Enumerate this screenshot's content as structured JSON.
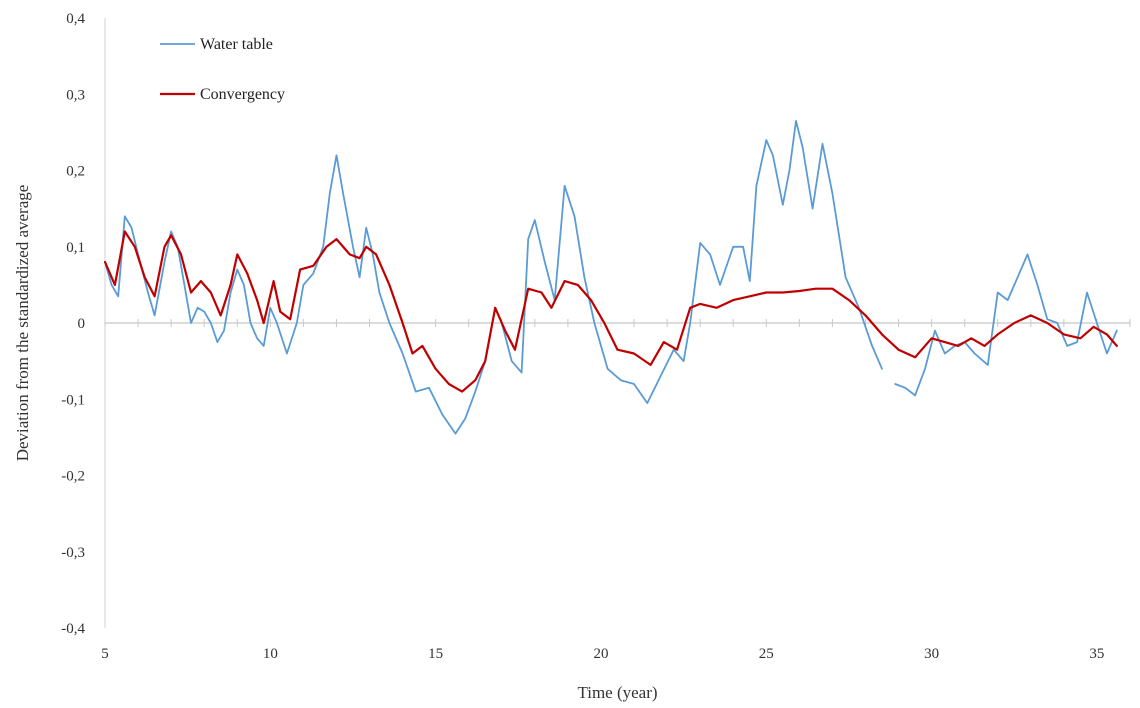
{
  "chart_data": {
    "type": "line",
    "title": "",
    "xlabel": "Time (year)",
    "ylabel": "Deviation from the standardized average",
    "xlim": [
      5,
      36
    ],
    "ylim": [
      -0.4,
      0.4
    ],
    "x_ticks": [
      5,
      10,
      15,
      20,
      25,
      30,
      35
    ],
    "x_tick_labels": [
      "5",
      "10",
      "15",
      "20",
      "25",
      "30",
      "35"
    ],
    "y_ticks": [
      0.4,
      0.3,
      0.2,
      0.1,
      0,
      -0.1,
      -0.2,
      -0.3,
      -0.4
    ],
    "y_tick_labels": [
      "0,4",
      "0,3",
      "0,2",
      "0,1",
      "0",
      "-0,1",
      "-0,2",
      "-0,3",
      "-0,4"
    ],
    "grid": false,
    "legend_position": "top-left",
    "series": [
      {
        "name": "Water table",
        "color": "#5b9bd5",
        "points": [
          [
            5.0,
            0.08
          ],
          [
            5.2,
            0.05
          ],
          [
            5.4,
            0.035
          ],
          [
            5.6,
            0.14
          ],
          [
            5.8,
            0.125
          ],
          [
            6.0,
            0.09
          ],
          [
            6.3,
            0.04
          ],
          [
            6.5,
            0.01
          ],
          [
            6.8,
            0.08
          ],
          [
            7.0,
            0.12
          ],
          [
            7.2,
            0.1
          ],
          [
            7.4,
            0.05
          ],
          [
            7.6,
            0.0
          ],
          [
            7.8,
            0.02
          ],
          [
            8.0,
            0.015
          ],
          [
            8.2,
            0.0
          ],
          [
            8.4,
            -0.025
          ],
          [
            8.6,
            -0.01
          ],
          [
            8.8,
            0.04
          ],
          [
            9.0,
            0.07
          ],
          [
            9.2,
            0.05
          ],
          [
            9.4,
            0.0
          ],
          [
            9.6,
            -0.02
          ],
          [
            9.8,
            -0.03
          ],
          [
            10.0,
            0.02
          ],
          [
            10.2,
            0.0
          ],
          [
            10.5,
            -0.04
          ],
          [
            10.8,
            0.0
          ],
          [
            11.0,
            0.05
          ],
          [
            11.3,
            0.065
          ],
          [
            11.6,
            0.1
          ],
          [
            11.8,
            0.17
          ],
          [
            12.0,
            0.22
          ],
          [
            12.2,
            0.17
          ],
          [
            12.5,
            0.1
          ],
          [
            12.7,
            0.06
          ],
          [
            12.9,
            0.125
          ],
          [
            13.1,
            0.09
          ],
          [
            13.3,
            0.04
          ],
          [
            13.6,
            0.0
          ],
          [
            14.0,
            -0.04
          ],
          [
            14.4,
            -0.09
          ],
          [
            14.8,
            -0.085
          ],
          [
            15.2,
            -0.12
          ],
          [
            15.6,
            -0.145
          ],
          [
            15.9,
            -0.125
          ],
          [
            16.2,
            -0.09
          ],
          [
            16.5,
            -0.05
          ],
          [
            16.8,
            0.02
          ],
          [
            17.0,
            0.0
          ],
          [
            17.3,
            -0.05
          ],
          [
            17.6,
            -0.065
          ],
          [
            17.8,
            0.11
          ],
          [
            18.0,
            0.135
          ],
          [
            18.3,
            0.08
          ],
          [
            18.6,
            0.03
          ],
          [
            18.9,
            0.18
          ],
          [
            19.2,
            0.14
          ],
          [
            19.5,
            0.06
          ],
          [
            19.8,
            0.0
          ],
          [
            20.2,
            -0.06
          ],
          [
            20.6,
            -0.075
          ],
          [
            21.0,
            -0.08
          ],
          [
            21.4,
            -0.105
          ],
          [
            21.8,
            -0.07
          ],
          [
            22.2,
            -0.035
          ],
          [
            22.5,
            -0.05
          ],
          [
            22.7,
            0.0
          ],
          [
            23.0,
            0.105
          ],
          [
            23.3,
            0.09
          ],
          [
            23.6,
            0.05
          ],
          [
            24.0,
            0.1
          ],
          [
            24.3,
            0.1
          ],
          [
            24.5,
            0.055
          ],
          [
            24.7,
            0.18
          ],
          [
            25.0,
            0.24
          ],
          [
            25.2,
            0.22
          ],
          [
            25.5,
            0.155
          ],
          [
            25.7,
            0.2
          ],
          [
            25.9,
            0.265
          ],
          [
            26.1,
            0.23
          ],
          [
            26.4,
            0.15
          ],
          [
            26.7,
            0.235
          ],
          [
            27.0,
            0.17
          ],
          [
            27.4,
            0.06
          ],
          [
            27.8,
            0.02
          ],
          [
            28.2,
            -0.03
          ],
          [
            28.5,
            -0.06
          ],
          [
            28.7,
            null
          ],
          [
            28.9,
            -0.08
          ],
          [
            29.2,
            -0.085
          ],
          [
            29.5,
            -0.095
          ],
          [
            29.8,
            -0.06
          ],
          [
            30.1,
            -0.01
          ],
          [
            30.4,
            -0.04
          ],
          [
            30.7,
            -0.03
          ],
          [
            31.0,
            -0.025
          ],
          [
            31.3,
            -0.04
          ],
          [
            31.7,
            -0.055
          ],
          [
            32.0,
            0.04
          ],
          [
            32.3,
            0.03
          ],
          [
            32.6,
            0.06
          ],
          [
            32.9,
            0.09
          ],
          [
            33.2,
            0.05
          ],
          [
            33.5,
            0.005
          ],
          [
            33.8,
            0.0
          ],
          [
            34.1,
            -0.03
          ],
          [
            34.4,
            -0.025
          ],
          [
            34.7,
            0.04
          ],
          [
            35.0,
            0.0
          ],
          [
            35.3,
            -0.04
          ],
          [
            35.6,
            -0.01
          ]
        ]
      },
      {
        "name": "Convergency",
        "color": "#c00000",
        "points": [
          [
            5.0,
            0.08
          ],
          [
            5.3,
            0.05
          ],
          [
            5.6,
            0.12
          ],
          [
            5.9,
            0.1
          ],
          [
            6.2,
            0.06
          ],
          [
            6.5,
            0.035
          ],
          [
            6.8,
            0.1
          ],
          [
            7.0,
            0.115
          ],
          [
            7.3,
            0.09
          ],
          [
            7.6,
            0.04
          ],
          [
            7.9,
            0.055
          ],
          [
            8.2,
            0.04
          ],
          [
            8.5,
            0.01
          ],
          [
            8.8,
            0.05
          ],
          [
            9.0,
            0.09
          ],
          [
            9.3,
            0.065
          ],
          [
            9.6,
            0.03
          ],
          [
            9.8,
            0.0
          ],
          [
            10.1,
            0.055
          ],
          [
            10.3,
            0.015
          ],
          [
            10.6,
            0.005
          ],
          [
            10.9,
            0.07
          ],
          [
            11.3,
            0.075
          ],
          [
            11.7,
            0.1
          ],
          [
            12.0,
            0.11
          ],
          [
            12.4,
            0.09
          ],
          [
            12.7,
            0.085
          ],
          [
            12.9,
            0.1
          ],
          [
            13.2,
            0.09
          ],
          [
            13.6,
            0.05
          ],
          [
            14.0,
            0.0
          ],
          [
            14.3,
            -0.04
          ],
          [
            14.6,
            -0.03
          ],
          [
            15.0,
            -0.06
          ],
          [
            15.4,
            -0.08
          ],
          [
            15.8,
            -0.09
          ],
          [
            16.2,
            -0.075
          ],
          [
            16.5,
            -0.05
          ],
          [
            16.8,
            0.02
          ],
          [
            17.1,
            -0.01
          ],
          [
            17.4,
            -0.035
          ],
          [
            17.8,
            0.045
          ],
          [
            18.2,
            0.04
          ],
          [
            18.5,
            0.02
          ],
          [
            18.9,
            0.055
          ],
          [
            19.3,
            0.05
          ],
          [
            19.7,
            0.03
          ],
          [
            20.1,
            0.0
          ],
          [
            20.5,
            -0.035
          ],
          [
            21.0,
            -0.04
          ],
          [
            21.5,
            -0.055
          ],
          [
            21.9,
            -0.025
          ],
          [
            22.3,
            -0.035
          ],
          [
            22.7,
            0.02
          ],
          [
            23.0,
            0.025
          ],
          [
            23.5,
            0.02
          ],
          [
            24.0,
            0.03
          ],
          [
            24.5,
            0.035
          ],
          [
            25.0,
            0.04
          ],
          [
            25.5,
            0.04
          ],
          [
            26.0,
            0.042
          ],
          [
            26.5,
            0.045
          ],
          [
            27.0,
            0.045
          ],
          [
            27.5,
            0.03
          ],
          [
            28.0,
            0.01
          ],
          [
            28.5,
            -0.015
          ],
          [
            29.0,
            -0.035
          ],
          [
            29.5,
            -0.045
          ],
          [
            30.0,
            -0.02
          ],
          [
            30.4,
            -0.025
          ],
          [
            30.8,
            -0.03
          ],
          [
            31.2,
            -0.02
          ],
          [
            31.6,
            -0.03
          ],
          [
            32.0,
            -0.015
          ],
          [
            32.5,
            0.0
          ],
          [
            33.0,
            0.01
          ],
          [
            33.5,
            0.0
          ],
          [
            34.0,
            -0.015
          ],
          [
            34.5,
            -0.02
          ],
          [
            34.9,
            -0.005
          ],
          [
            35.3,
            -0.015
          ],
          [
            35.6,
            -0.03
          ]
        ]
      }
    ]
  }
}
